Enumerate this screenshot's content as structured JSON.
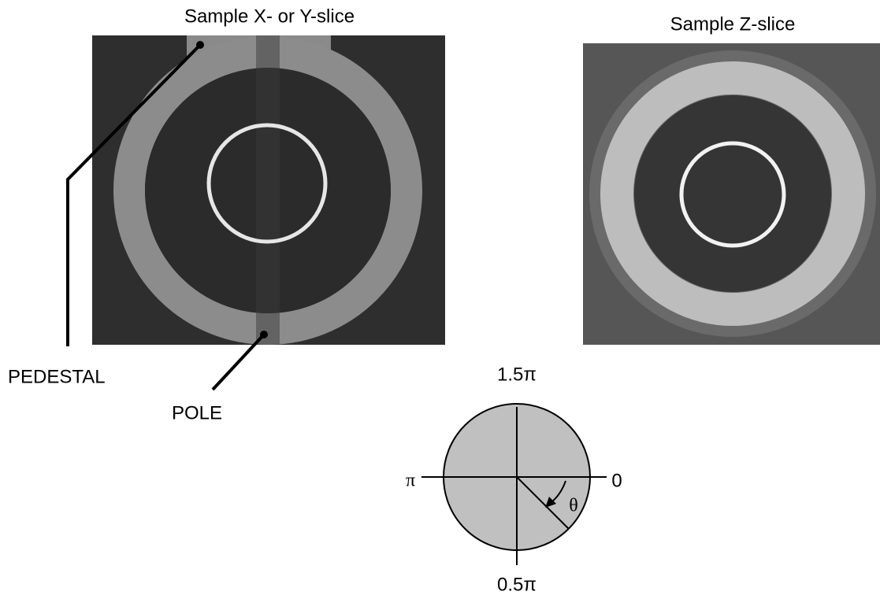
{
  "slices": {
    "xy_title": "Sample X- or Y-slice",
    "z_title": "Sample Z-slice"
  },
  "callouts": {
    "pedestal": "PEDESTAL",
    "pole": "POLE"
  },
  "angle_diagram": {
    "top": "1.5π",
    "left": "π",
    "right": "0",
    "bottom": "0.5π",
    "theta": "θ"
  }
}
